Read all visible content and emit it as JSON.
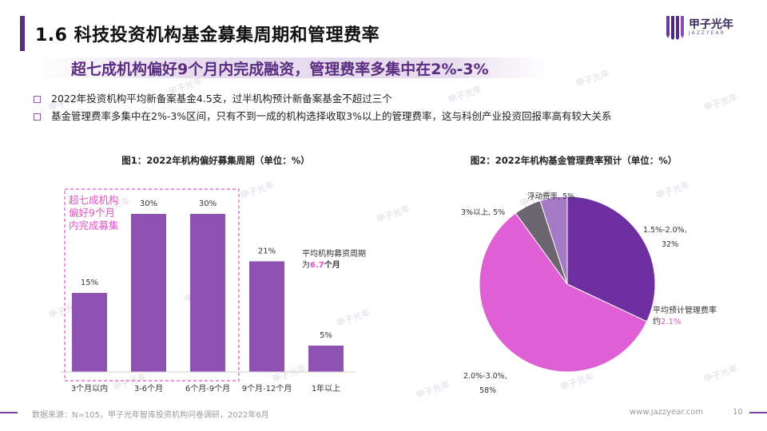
{
  "header": {
    "title": "1.6 科技投资机构基金募集周期和管理费率",
    "logo_text": "甲子光年",
    "logo_sub": "JAZZYEAR"
  },
  "subtitle": "超七成机构偏好9个月内完成融资，管理费率多集中在2%-3%",
  "bullets": [
    "2022年投资机构平均新备案基金4.5支，过半机构预计新备案基金不超过三个",
    "基金管理费率多集中在2%-3%区间，只有不到一成的机构选择收取3%以上的管理费率，这与科创产业投资回报率高有较大关系"
  ],
  "chart_data": [
    {
      "type": "bar",
      "title": "图1：2022年机构偏好募集周期（单位：%）",
      "categories": [
        "3个月以内",
        "3-6个月",
        "6个月-9个月",
        "9个月-12个月",
        "1年以上"
      ],
      "values": [
        15,
        30,
        30,
        21,
        5
      ],
      "value_labels": [
        "15%",
        "30%",
        "30%",
        "21%",
        "5%"
      ],
      "color": "#8e52b3",
      "highlight_text": [
        "超七成机构",
        "偏好9个月",
        "内完成募集"
      ],
      "highlight_color": "#e055c5",
      "annotation": {
        "line1": "平均机构募资周期",
        "prefix": "为",
        "value": "6.7",
        "suffix": "个月"
      }
    },
    {
      "type": "pie",
      "title": "图2：2022年机构基金管理费率预计（单位：%）",
      "slices": [
        {
          "label": "1.5%-2.0%,",
          "pct_label": "32%",
          "value": 32,
          "color": "#6e2fa0"
        },
        {
          "label": "2.0%-3.0%,",
          "pct_label": "58%",
          "value": 58,
          "color": "#e05fd4"
        },
        {
          "label": "3%以上,",
          "pct_label": "5%",
          "value": 5,
          "color": "#6b6570"
        },
        {
          "label": "浮动费率,",
          "pct_label": "5%",
          "value": 5,
          "color": "#a57ac4"
        }
      ],
      "annotation": {
        "line1": "平均预计管理费率",
        "prefix": "约",
        "value": "2.1%"
      }
    }
  ],
  "footer": {
    "source": "数据来源：N=105，甲子光年智库投资机构问卷调研，2022年6月",
    "site": "www.jazzyear.com",
    "page": "10"
  },
  "colors": {
    "accent": "#5a2d82",
    "highlight": "#e055c5"
  }
}
